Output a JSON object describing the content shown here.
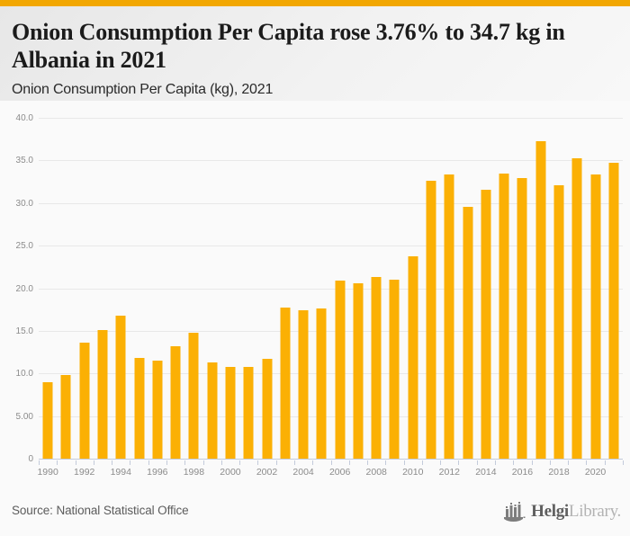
{
  "page": {
    "accent_color": "#F2A702",
    "title": "Onion Consumption Per Capita rose 3.76% to 34.7 kg in Albania in 2021",
    "subtitle": "Onion Consumption Per Capita (kg), 2021",
    "source": "Source: National Statistical Office",
    "logo": {
      "text_primary": "Helgi",
      "text_secondary": "Library."
    }
  },
  "chart_data": {
    "type": "bar",
    "title": "Onion Consumption Per Capita (kg), 2021",
    "xlabel": "",
    "ylabel": "",
    "ylim": [
      0,
      40
    ],
    "grid": true,
    "legend": false,
    "bar_color": "#FBB004",
    "grid_color": "#e8e8e8",
    "axis_color": "#c3cbdb",
    "categories": [
      1990,
      1991,
      1992,
      1993,
      1994,
      1995,
      1996,
      1997,
      1998,
      1999,
      2000,
      2001,
      2002,
      2003,
      2004,
      2005,
      2006,
      2007,
      2008,
      2009,
      2010,
      2011,
      2012,
      2013,
      2014,
      2015,
      2016,
      2017,
      2018,
      2019,
      2020,
      2021
    ],
    "values": [
      9.0,
      9.8,
      13.6,
      15.1,
      16.8,
      11.8,
      11.5,
      13.2,
      14.8,
      11.3,
      10.8,
      10.8,
      11.7,
      17.7,
      17.4,
      17.6,
      20.9,
      20.6,
      21.3,
      21.0,
      23.7,
      32.6,
      33.4,
      29.6,
      31.6,
      33.5,
      32.9,
      37.3,
      32.1,
      35.2,
      33.4,
      34.7
    ],
    "y_ticks": [
      {
        "label": "40.0",
        "value": 40
      },
      {
        "label": "35.0",
        "value": 35
      },
      {
        "label": "30.0",
        "value": 30
      },
      {
        "label": "25.0",
        "value": 25
      },
      {
        "label": "20.0",
        "value": 20
      },
      {
        "label": "15.0",
        "value": 15
      },
      {
        "label": "10.0",
        "value": 10
      },
      {
        "label": "5.00",
        "value": 5
      },
      {
        "label": "0",
        "value": 0
      }
    ],
    "x_tick_labels": [
      "1990",
      "1992",
      "1994",
      "1996",
      "1998",
      "2000",
      "2002",
      "2004",
      "2006",
      "2008",
      "2010",
      "2012",
      "2014",
      "2016",
      "2018",
      "2020"
    ]
  }
}
